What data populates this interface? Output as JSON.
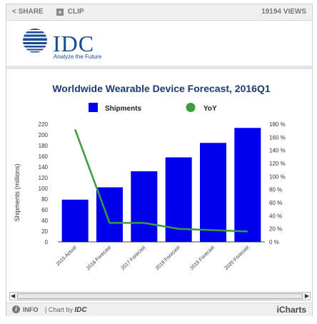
{
  "toolbar": {
    "share_label": "SHARE",
    "clip_label": "CLIP",
    "views_label": "19194 VIEWS"
  },
  "brand": {
    "logo_text": "IDC",
    "tagline": "Analyze the Future"
  },
  "footer": {
    "info_label": "INFO",
    "chart_by_prefix": "| Chart by",
    "chart_by_name": "IDC",
    "icharts_label": "iCharts"
  },
  "colors": {
    "bars": "#0000ee",
    "line": "#3c9c3c",
    "title": "#1f3a6e"
  },
  "chart_data": {
    "type": "bar",
    "title": "Worldwide Wearable Device Forecast, 2016Q1",
    "categories": [
      "2015 Actual",
      "2016 Forecast",
      "2017 Forecast",
      "2018 Forecast",
      "2019 Forecast",
      "2020 Forecast"
    ],
    "series": [
      {
        "name": "Shipments",
        "type": "bar",
        "axis": "left",
        "values": [
          79,
          102,
          132,
          158,
          185,
          213
        ]
      },
      {
        "name": "YoY",
        "type": "line",
        "axis": "right",
        "values": [
          172,
          29,
          29,
          20,
          18,
          16
        ]
      }
    ],
    "ylabel": "Shipments (millions)",
    "ylim": [
      0,
      220
    ],
    "yticks": [
      0,
      20,
      40,
      60,
      80,
      100,
      120,
      140,
      160,
      180,
      200,
      220
    ],
    "y2lim": [
      0,
      180
    ],
    "y2ticks": [
      "0 %",
      "20 %",
      "40 %",
      "60 %",
      "80 %",
      "100 %",
      "120 %",
      "140 %",
      "160 %",
      "180 %"
    ],
    "legend": "top",
    "grid": false
  }
}
